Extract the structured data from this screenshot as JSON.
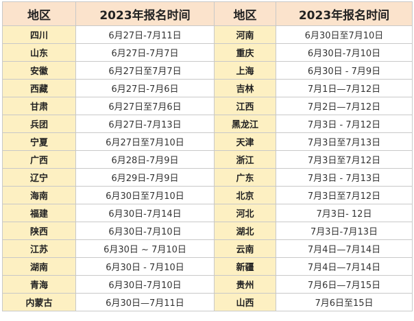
{
  "headers": {
    "left_region": "地区",
    "left_date": "2023年报名时间",
    "right_region": "地区",
    "right_date": "2023年报名时间"
  },
  "rows": [
    {
      "left_region": "四川",
      "left_date": "6月27日-7月11日",
      "right_region": "河南",
      "right_date": "6月30日至7月10日"
    },
    {
      "left_region": "山东",
      "left_date": "6月27日-7月7日",
      "right_region": "重庆",
      "right_date": "6月30日-7月10日"
    },
    {
      "left_region": "安徽",
      "left_date": "6月27日至7月7日",
      "right_region": "上海",
      "right_date": "6月30日 - 7月9日"
    },
    {
      "left_region": "西藏",
      "left_date": "6月27日-7月6日",
      "right_region": "吉林",
      "right_date": "7月1日—7月12日"
    },
    {
      "left_region": "甘肃",
      "left_date": "6月27日至7月6日",
      "right_region": "江西",
      "right_date": "7月2日—7月12日"
    },
    {
      "left_region": "兵团",
      "left_date": "6月27日-7月13日",
      "right_region": "黑龙江",
      "right_date": "7月3日 - 7月12日"
    },
    {
      "left_region": "宁夏",
      "left_date": "6月27日至7月10日",
      "right_region": "天津",
      "right_date": "7月3日至7月13日"
    },
    {
      "left_region": "广西",
      "left_date": "6月28日-7月9日",
      "right_region": "浙江",
      "right_date": "7月3日至7月12日"
    },
    {
      "left_region": "辽宁",
      "left_date": "6月29日-7月9日",
      "right_region": "广东",
      "right_date": "7月3日 - 7月13日"
    },
    {
      "left_region": "海南",
      "left_date": "6月30日至7月10日",
      "right_region": "北京",
      "right_date": "7月3日至7月12日"
    },
    {
      "left_region": "福建",
      "left_date": "6月30日-7月14日",
      "right_region": "河北",
      "right_date": "7月3日- 12日"
    },
    {
      "left_region": "陕西",
      "left_date": "6月30日-7月10日",
      "right_region": "湖北",
      "right_date": "7月3日-7月13日"
    },
    {
      "left_region": "江苏",
      "left_date": "6月30日 ~ 7月10日",
      "right_region": "云南",
      "right_date": "7月4日—7月14日"
    },
    {
      "left_region": "湖南",
      "left_date": "6月30日 - 7月10日",
      "right_region": "新疆",
      "right_date": "7月4日—7月14日"
    },
    {
      "left_region": "青海",
      "left_date": "6月30日-7月10日",
      "right_region": "贵州",
      "right_date": "7月6日—7月15日"
    },
    {
      "left_region": "内蒙古",
      "left_date": "6月30日—7月11日",
      "right_region": "山西",
      "right_date": "7月6日至15日"
    }
  ],
  "colors": {
    "header_bg": "#fbe3cc",
    "region_bg": "#fdf0c2",
    "date_bg": "#ffffff",
    "border": "#c8c8c8"
  }
}
